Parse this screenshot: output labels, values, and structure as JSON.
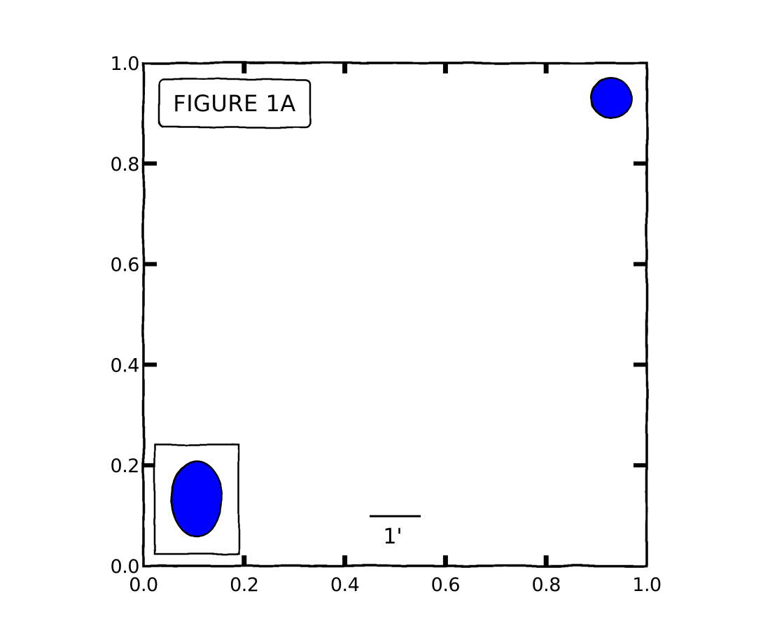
{
  "chart_data": {
    "type": "scatter",
    "title": "",
    "xlabel": "",
    "ylabel": "",
    "xlim": [
      0.0,
      1.0
    ],
    "ylim": [
      0.0,
      1.0
    ],
    "grid": false,
    "style": "hand-drawn",
    "x_ticks": [
      "0.0",
      "0.2",
      "0.4",
      "0.6",
      "0.8",
      "1.0"
    ],
    "y_ticks": [
      "0.0",
      "0.2",
      "0.4",
      "0.6",
      "0.8",
      "1.0"
    ],
    "points": [
      {
        "x": 0.93,
        "y": 0.93,
        "shape": "circle",
        "color": "#0000ff"
      }
    ],
    "annotation_box": {
      "text": "FIGURE 1A",
      "location": "upper-left"
    },
    "inset_box": {
      "location": "lower-left",
      "marker": {
        "shape": "ellipse",
        "color": "#0000ff"
      }
    },
    "fraction_label": {
      "numerator": "",
      "denominator": "1'"
    }
  }
}
